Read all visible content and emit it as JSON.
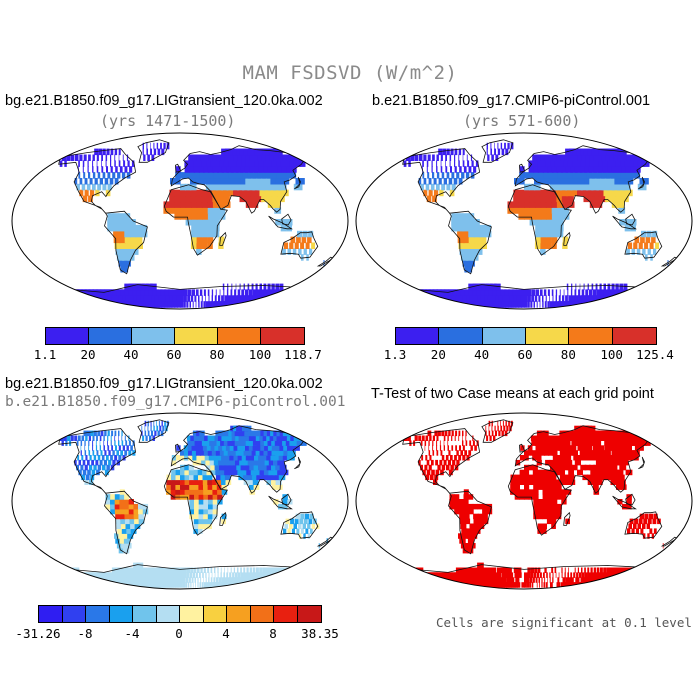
{
  "title": "MAM FSDSVD (W/m^2)",
  "panels": {
    "top_left": {
      "case": "bg.e21.B1850.f09_g17.LIGtransient_120.0ka.002",
      "years": "(yrs 1471-1500)"
    },
    "top_right": {
      "case": "b.e21.B1850.f09_g17.CMIP6-piControl.001",
      "years": "(yrs 571-600)"
    },
    "bottom_left": {
      "case": "bg.e21.B1850.f09_g17.LIGtransient_120.0ka.002",
      "subcase": "b.e21.B1850.f09_g17.CMIP6-piControl.001"
    },
    "bottom_right": {
      "title": "T-Test of two Case means at each grid point",
      "note": "Cells are significant at 0.1 level"
    }
  },
  "colorbars": {
    "top_left": {
      "labels": [
        "1.1",
        "20",
        "40",
        "60",
        "80",
        "100",
        "118.7"
      ]
    },
    "top_right": {
      "labels": [
        "1.3",
        "20",
        "40",
        "60",
        "80",
        "100",
        "125.4"
      ]
    },
    "bottom_left": {
      "labels": [
        "-31.26",
        "-8",
        "-4",
        "0",
        "4",
        "8",
        "38.35"
      ]
    }
  },
  "colors": {
    "abs_scale": [
      "#3c1ff0",
      "#2a6fe0",
      "#7ec0ec",
      "#f6d84a",
      "#f47a1a",
      "#d8302a"
    ],
    "diff_scale": [
      "#2f1ef2",
      "#3040f0",
      "#2a78e8",
      "#1aa0ee",
      "#70c4ec",
      "#b4def2",
      "#fff2a0",
      "#f8d040",
      "#f6a020",
      "#f27018",
      "#e82010",
      "#c81818"
    ],
    "significant": "#ee0000"
  }
}
